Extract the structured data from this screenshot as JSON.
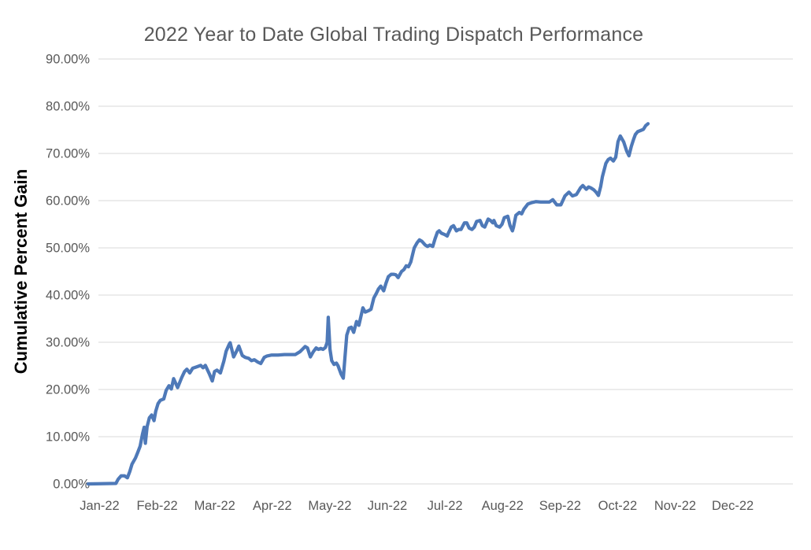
{
  "chart_data": {
    "type": "line",
    "title": "2022 Year to Date Global Trading Dispatch Performance",
    "ylabel": "Cumulative Percent Gain",
    "xlabel": "",
    "x_tick_labels": [
      "Jan-22",
      "Feb-22",
      "Mar-22",
      "Apr-22",
      "May-22",
      "Jun-22",
      "Jul-22",
      "Aug-22",
      "Sep-22",
      "Oct-22",
      "Nov-22",
      "Dec-22"
    ],
    "y_tick_labels": [
      "0.00%",
      "10.00%",
      "20.00%",
      "30.00%",
      "40.00%",
      "50.00%",
      "60.00%",
      "70.00%",
      "80.00%",
      "90.00%"
    ],
    "y_tick_values": [
      0,
      10,
      20,
      30,
      40,
      50,
      60,
      70,
      80,
      90
    ],
    "ylim": [
      0,
      90
    ],
    "xlim_months": [
      0,
      12
    ],
    "grid": "horizontal-only",
    "legend": "none",
    "line_color": "#4E79B8",
    "line_width": 4.25,
    "gridline_color": "#D9D9D9",
    "text_color": "#595959",
    "background_color": "#FFFFFF",
    "series": [
      {
        "name": "Cumulative Percent Gain",
        "x_unit": "months since Jan 1 2022 (0 = Jan-22, 9.7 ≈ late Oct-22)",
        "y_unit": "percent",
        "points": [
          [
            0,
            0.0
          ],
          [
            0.48,
            0.1
          ],
          [
            0.52,
            1.0
          ],
          [
            0.57,
            1.7
          ],
          [
            0.63,
            1.7
          ],
          [
            0.68,
            1.3
          ],
          [
            0.72,
            2.6
          ],
          [
            0.76,
            4.2
          ],
          [
            0.82,
            5.5
          ],
          [
            0.86,
            6.7
          ],
          [
            0.9,
            8.0
          ],
          [
            0.94,
            10.5
          ],
          [
            0.97,
            12.0
          ],
          [
            0.99,
            8.6
          ],
          [
            1.02,
            12.1
          ],
          [
            1.06,
            14.0
          ],
          [
            1.1,
            14.6
          ],
          [
            1.14,
            13.4
          ],
          [
            1.17,
            15.4
          ],
          [
            1.21,
            17.0
          ],
          [
            1.25,
            17.7
          ],
          [
            1.31,
            18.0
          ],
          [
            1.35,
            19.8
          ],
          [
            1.4,
            20.8
          ],
          [
            1.44,
            20.1
          ],
          [
            1.48,
            22.3
          ],
          [
            1.55,
            20.4
          ],
          [
            1.62,
            22.5
          ],
          [
            1.67,
            23.8
          ],
          [
            1.71,
            24.3
          ],
          [
            1.76,
            23.5
          ],
          [
            1.81,
            24.5
          ],
          [
            1.88,
            24.8
          ],
          [
            1.95,
            25.1
          ],
          [
            1.99,
            24.6
          ],
          [
            2.03,
            25.1
          ],
          [
            2.1,
            23.3
          ],
          [
            2.15,
            21.8
          ],
          [
            2.19,
            23.8
          ],
          [
            2.23,
            24.1
          ],
          [
            2.29,
            23.5
          ],
          [
            2.35,
            26.0
          ],
          [
            2.39,
            28.1
          ],
          [
            2.44,
            29.5
          ],
          [
            2.46,
            29.9
          ],
          [
            2.52,
            26.9
          ],
          [
            2.57,
            28.1
          ],
          [
            2.61,
            29.2
          ],
          [
            2.67,
            27.2
          ],
          [
            2.72,
            26.8
          ],
          [
            2.78,
            26.6
          ],
          [
            2.83,
            26.1
          ],
          [
            2.88,
            26.3
          ],
          [
            2.94,
            25.8
          ],
          [
            2.99,
            25.5
          ],
          [
            3.05,
            26.8
          ],
          [
            3.1,
            27.1
          ],
          [
            3.18,
            27.3
          ],
          [
            3.29,
            27.3
          ],
          [
            3.4,
            27.4
          ],
          [
            3.5,
            27.4
          ],
          [
            3.59,
            27.4
          ],
          [
            3.67,
            28.0
          ],
          [
            3.76,
            29.1
          ],
          [
            3.8,
            28.8
          ],
          [
            3.85,
            26.9
          ],
          [
            3.9,
            28.0
          ],
          [
            3.95,
            28.8
          ],
          [
            3.99,
            28.5
          ],
          [
            4.03,
            28.7
          ],
          [
            4.07,
            28.5
          ],
          [
            4.11,
            28.9
          ],
          [
            4.14,
            30.0
          ],
          [
            4.16,
            35.3
          ],
          [
            4.19,
            28.5
          ],
          [
            4.22,
            26.1
          ],
          [
            4.26,
            25.3
          ],
          [
            4.3,
            25.6
          ],
          [
            4.33,
            25.0
          ],
          [
            4.35,
            24.3
          ],
          [
            4.38,
            23.3
          ],
          [
            4.42,
            22.4
          ],
          [
            4.45,
            27.0
          ],
          [
            4.48,
            31.5
          ],
          [
            4.52,
            33.0
          ],
          [
            4.56,
            33.2
          ],
          [
            4.6,
            32.1
          ],
          [
            4.65,
            34.4
          ],
          [
            4.69,
            33.6
          ],
          [
            4.76,
            37.3
          ],
          [
            4.8,
            36.4
          ],
          [
            4.86,
            36.7
          ],
          [
            4.9,
            37.0
          ],
          [
            4.95,
            39.4
          ],
          [
            4.99,
            40.3
          ],
          [
            5.03,
            41.3
          ],
          [
            5.07,
            41.9
          ],
          [
            5.12,
            40.9
          ],
          [
            5.16,
            42.5
          ],
          [
            5.2,
            43.9
          ],
          [
            5.25,
            44.4
          ],
          [
            5.29,
            44.4
          ],
          [
            5.33,
            44.3
          ],
          [
            5.37,
            43.7
          ],
          [
            5.43,
            45.0
          ],
          [
            5.47,
            45.4
          ],
          [
            5.51,
            46.2
          ],
          [
            5.55,
            46.0
          ],
          [
            5.59,
            47.0
          ],
          [
            5.65,
            50.0
          ],
          [
            5.7,
            51.1
          ],
          [
            5.74,
            51.7
          ],
          [
            5.78,
            51.4
          ],
          [
            5.84,
            50.6
          ],
          [
            5.88,
            50.3
          ],
          [
            5.92,
            50.6
          ],
          [
            5.97,
            50.3
          ],
          [
            6.01,
            51.9
          ],
          [
            6.05,
            53.3
          ],
          [
            6.08,
            53.6
          ],
          [
            6.12,
            53.1
          ],
          [
            6.18,
            52.8
          ],
          [
            6.22,
            52.5
          ],
          [
            6.24,
            53.1
          ],
          [
            6.29,
            54.4
          ],
          [
            6.33,
            54.7
          ],
          [
            6.38,
            53.6
          ],
          [
            6.42,
            53.9
          ],
          [
            6.46,
            53.9
          ],
          [
            6.52,
            55.3
          ],
          [
            6.56,
            55.3
          ],
          [
            6.6,
            54.2
          ],
          [
            6.65,
            53.9
          ],
          [
            6.69,
            54.4
          ],
          [
            6.73,
            55.6
          ],
          [
            6.79,
            55.8
          ],
          [
            6.83,
            54.7
          ],
          [
            6.87,
            54.4
          ],
          [
            6.93,
            56.1
          ],
          [
            6.97,
            55.8
          ],
          [
            7.01,
            55.3
          ],
          [
            7.03,
            55.8
          ],
          [
            7.07,
            54.7
          ],
          [
            7.13,
            54.4
          ],
          [
            7.17,
            55.0
          ],
          [
            7.21,
            56.4
          ],
          [
            7.27,
            56.7
          ],
          [
            7.31,
            54.7
          ],
          [
            7.35,
            53.6
          ],
          [
            7.37,
            54.4
          ],
          [
            7.41,
            56.9
          ],
          [
            7.47,
            57.5
          ],
          [
            7.51,
            57.2
          ],
          [
            7.55,
            58.2
          ],
          [
            7.62,
            59.3
          ],
          [
            7.69,
            59.6
          ],
          [
            7.76,
            59.8
          ],
          [
            7.84,
            59.7
          ],
          [
            7.92,
            59.7
          ],
          [
            7.99,
            59.7
          ],
          [
            8.05,
            60.2
          ],
          [
            8.12,
            59.1
          ],
          [
            8.19,
            59.1
          ],
          [
            8.26,
            61.0
          ],
          [
            8.33,
            61.8
          ],
          [
            8.39,
            61.0
          ],
          [
            8.46,
            61.3
          ],
          [
            8.53,
            62.7
          ],
          [
            8.57,
            63.2
          ],
          [
            8.63,
            62.4
          ],
          [
            8.67,
            62.9
          ],
          [
            8.71,
            62.7
          ],
          [
            8.76,
            62.3
          ],
          [
            8.8,
            61.8
          ],
          [
            8.84,
            61.1
          ],
          [
            8.88,
            63.0
          ],
          [
            8.91,
            65.1
          ],
          [
            8.97,
            67.9
          ],
          [
            9.01,
            68.7
          ],
          [
            9.05,
            69.0
          ],
          [
            9.1,
            68.4
          ],
          [
            9.14,
            69.2
          ],
          [
            9.18,
            72.5
          ],
          [
            9.22,
            73.7
          ],
          [
            9.28,
            72.4
          ],
          [
            9.33,
            70.5
          ],
          [
            9.37,
            69.5
          ],
          [
            9.41,
            71.5
          ],
          [
            9.45,
            73.0
          ],
          [
            9.48,
            74.0
          ],
          [
            9.52,
            74.6
          ],
          [
            9.58,
            74.9
          ],
          [
            9.62,
            75.1
          ],
          [
            9.66,
            75.9
          ],
          [
            9.7,
            76.3
          ]
        ]
      }
    ]
  }
}
